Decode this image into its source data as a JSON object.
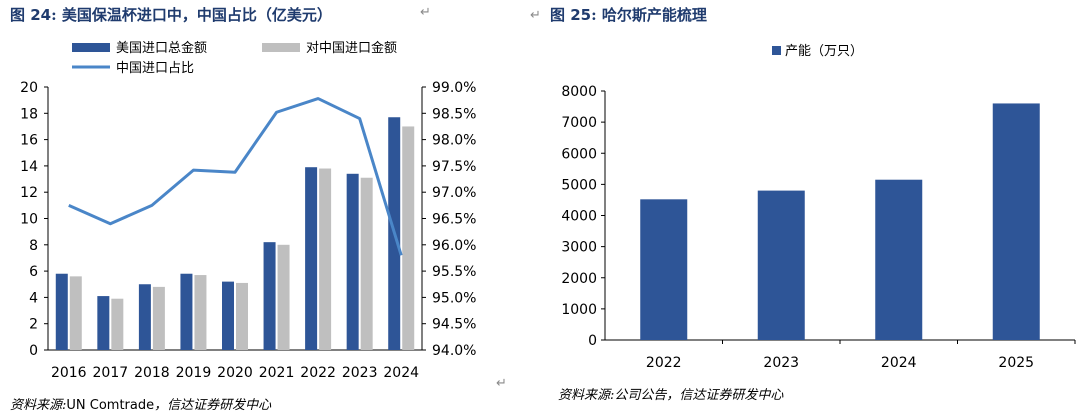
{
  "chart_data": [
    {
      "type": "bar+line",
      "figure_label": "图",
      "figure_number": "24",
      "title_sep": ":",
      "title": "美国保温杯进口中，中国占比（亿美元）",
      "categories": [
        "2016",
        "2017",
        "2018",
        "2019",
        "2020",
        "2021",
        "2022",
        "2023",
        "2024"
      ],
      "series": [
        {
          "name": "美国进口总金额",
          "kind": "bar",
          "axis": "left",
          "color": "#2e5597",
          "values": [
            5.8,
            4.1,
            5.0,
            5.8,
            5.2,
            8.2,
            13.9,
            13.4,
            17.7
          ]
        },
        {
          "name": "对中国进口金额",
          "kind": "bar",
          "axis": "left",
          "color": "#bfbfbf",
          "values": [
            5.6,
            3.9,
            4.8,
            5.7,
            5.1,
            8.0,
            13.8,
            13.1,
            17.0
          ]
        },
        {
          "name": "中国进口占比",
          "kind": "line",
          "axis": "right",
          "color": "#4a86c8",
          "values": [
            96.75,
            96.4,
            96.75,
            97.42,
            97.38,
            98.52,
            98.78,
            98.4,
            95.8
          ]
        }
      ],
      "y_left": {
        "min": 0,
        "max": 20,
        "ticks": [
          "0",
          "2",
          "4",
          "6",
          "8",
          "10",
          "12",
          "14",
          "16",
          "18",
          "20"
        ]
      },
      "y_right": {
        "min": 94.0,
        "max": 99.0,
        "ticks": [
          "94.0%",
          "94.5%",
          "95.0%",
          "95.5%",
          "96.0%",
          "96.5%",
          "97.0%",
          "97.5%",
          "98.0%",
          "98.5%",
          "99.0%"
        ]
      },
      "legend_position": "top-left",
      "grid": false,
      "source_label": "资料来源:",
      "source_org": "UN Comtrade",
      "source_rest": "，信达证券研发中心"
    },
    {
      "type": "bar",
      "figure_label": "图",
      "figure_number": "25",
      "title_sep": ":",
      "title": "哈尔斯产能梳理",
      "categories": [
        "2022",
        "2023",
        "2024",
        "2025"
      ],
      "series": [
        {
          "name": "产能（万只）",
          "kind": "bar",
          "color": "#2e5597",
          "values": [
            4520,
            4800,
            5150,
            7600
          ]
        }
      ],
      "y_left": {
        "min": 0,
        "max": 8000,
        "ticks": [
          "0",
          "1000",
          "2000",
          "3000",
          "4000",
          "5000",
          "6000",
          "7000",
          "8000"
        ]
      },
      "legend_position": "top-center",
      "grid": false,
      "source_label": "资料来源:",
      "source_rest": "公司公告，信达证券研发中心"
    }
  ]
}
